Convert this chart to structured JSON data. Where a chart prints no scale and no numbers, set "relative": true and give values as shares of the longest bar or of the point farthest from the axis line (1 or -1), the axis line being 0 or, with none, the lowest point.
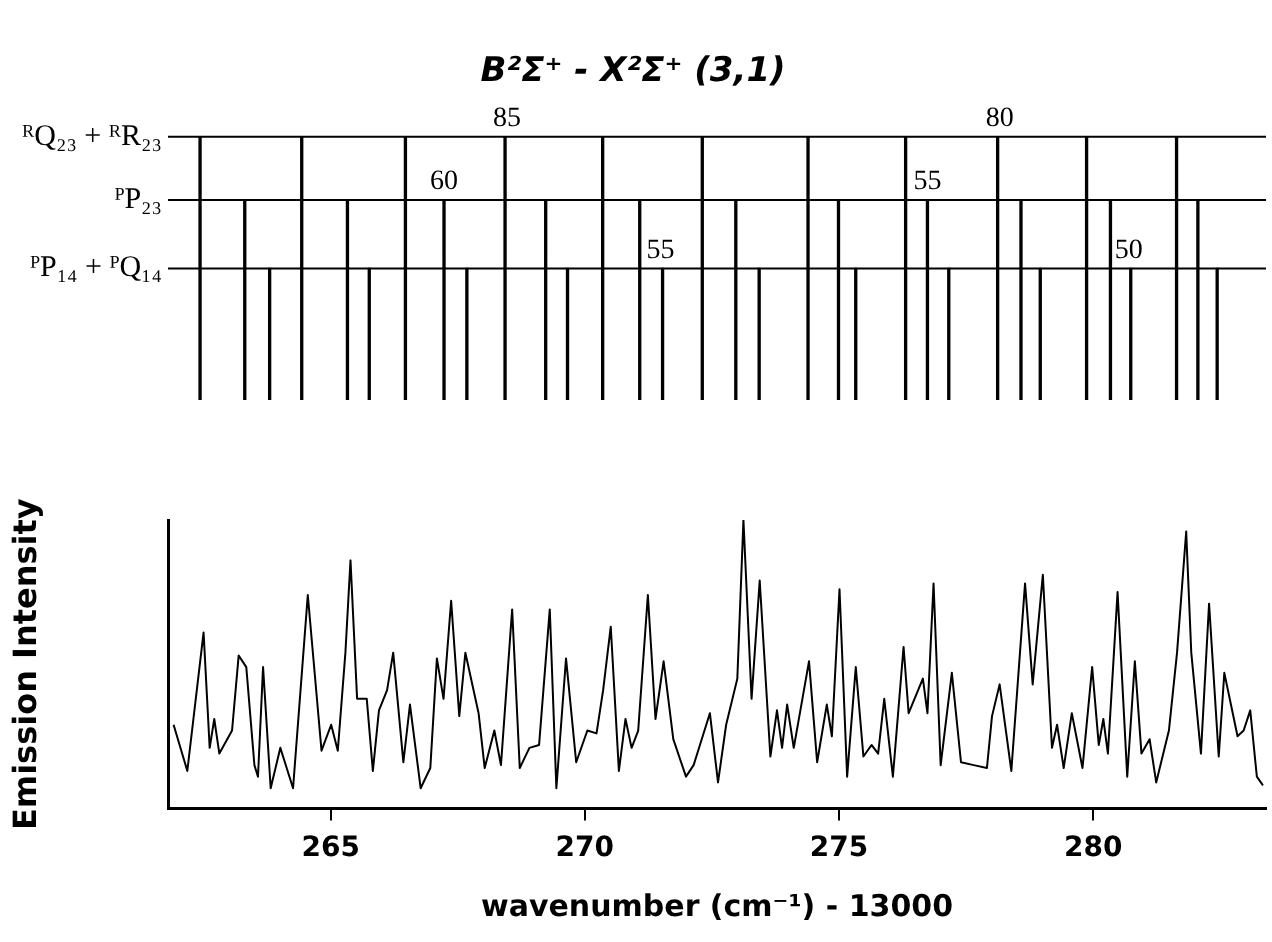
{
  "chart_data": [
    {
      "type": "bar",
      "title": "B²Σ⁺ - X²Σ⁺ (3,1)",
      "relative": true,
      "tick_labels": false,
      "legend": false,
      "xlim": [
        261.8,
        283.4
      ],
      "series": [
        {
          "color": "#000000",
          "x": [
            262.47,
            264.47,
            266.51,
            268.47,
            270.39,
            272.35,
            274.43,
            276.35,
            278.16,
            279.91,
            281.68
          ],
          "values": [
            1,
            1,
            1,
            1,
            1,
            1,
            1,
            1,
            1,
            1,
            1
          ]
        },
        {
          "color": "#000000",
          "x": [
            263.31,
            265.33,
            267.23,
            269.23,
            271.08,
            272.97,
            274.99,
            276.74,
            278.58,
            280.34,
            282.06
          ],
          "values": [
            0.76,
            0.76,
            0.76,
            0.76,
            0.76,
            0.76,
            0.76,
            0.76,
            0.76,
            0.76,
            0.76
          ]
        },
        {
          "color": "#000000",
          "x": [
            263.76,
            265.72,
            267.64,
            269.62,
            271.49,
            273.39,
            275.29,
            277.12,
            278.92,
            280.7,
            282.4
          ],
          "values": [
            0.5,
            0.5,
            0.5,
            0.5,
            0.5,
            0.5,
            0.5,
            0.5,
            0.5,
            0.5,
            0.5
          ]
        }
      ],
      "ref_lines": [
        {
          "axis": "y",
          "value": 1,
          "label": "ᴿQ₂₃ + ᴿR₂₃",
          "color": "#000000"
        },
        {
          "axis": "y",
          "value": 0.76,
          "label": "ᴾP₂₃",
          "color": "#000000"
        },
        {
          "axis": "y",
          "value": 0.5,
          "label": "ᴾP₁₄ + ᴾQ₁₄",
          "color": "#000000"
        }
      ],
      "annotations": [
        {
          "text": "85",
          "x": 268.47,
          "y": 1
        },
        {
          "text": "80",
          "x": 278.16,
          "y": 1
        },
        {
          "text": "60",
          "x": 267.23,
          "y": 0.76
        },
        {
          "text": "55",
          "x": 276.74,
          "y": 0.76
        },
        {
          "text": "55",
          "x": 271.49,
          "y": 0.5
        },
        {
          "text": "50",
          "x": 280.7,
          "y": 0.5
        }
      ]
    },
    {
      "type": "line",
      "relative": true,
      "tick_labels": "x",
      "legend": false,
      "grid": false,
      "xlabel": "wavenumber (cm⁻¹) - 13000",
      "ylabel": "Emission Intensity",
      "xlim": [
        261.8,
        283.4
      ],
      "xticks": [
        265,
        270,
        275,
        280
      ],
      "x": [
        261.91,
        262.18,
        262.5,
        262.62,
        262.71,
        262.81,
        263.06,
        263.19,
        263.34,
        263.5,
        263.57,
        263.67,
        263.82,
        264.01,
        264.26,
        264.55,
        264.82,
        265.01,
        265.14,
        265.29,
        265.39,
        265.52,
        265.71,
        265.83,
        265.95,
        266.11,
        266.23,
        266.43,
        266.56,
        266.77,
        266.96,
        267.09,
        267.22,
        267.37,
        267.53,
        267.65,
        267.91,
        268.03,
        268.22,
        268.35,
        268.57,
        268.72,
        268.91,
        269.1,
        269.31,
        269.44,
        269.63,
        269.83,
        270.05,
        270.23,
        270.36,
        270.51,
        270.67,
        270.8,
        270.92,
        271.05,
        271.24,
        271.39,
        271.55,
        271.74,
        271.99,
        272.14,
        272.46,
        272.62,
        272.78,
        273.0,
        273.12,
        273.28,
        273.44,
        273.65,
        273.78,
        273.88,
        273.98,
        274.11,
        274.41,
        274.57,
        274.76,
        274.86,
        275.01,
        275.16,
        275.33,
        275.48,
        275.64,
        275.77,
        275.89,
        276.06,
        276.27,
        276.37,
        276.65,
        276.74,
        276.86,
        277.0,
        277.22,
        277.4,
        277.65,
        277.91,
        278.01,
        278.16,
        278.39,
        278.66,
        278.81,
        279.01,
        279.19,
        279.29,
        279.42,
        279.58,
        279.79,
        279.98,
        280.11,
        280.2,
        280.29,
        280.48,
        280.67,
        280.82,
        280.95,
        281.11,
        281.24,
        281.49,
        281.65,
        281.83,
        281.93,
        282.12,
        282.28,
        282.47,
        282.58,
        282.71,
        282.84,
        282.96,
        283.09,
        283.22,
        283.34
      ],
      "series": [
        {
          "color": "#000000",
          "values": [
            0.29,
            0.13,
            0.61,
            0.21,
            0.31,
            0.19,
            0.27,
            0.53,
            0.49,
            0.15,
            0.11,
            0.49,
            0.07,
            0.21,
            0.07,
            0.74,
            0.2,
            0.29,
            0.2,
            0.54,
            0.86,
            0.38,
            0.38,
            0.13,
            0.34,
            0.41,
            0.54,
            0.16,
            0.36,
            0.07,
            0.14,
            0.52,
            0.38,
            0.72,
            0.32,
            0.54,
            0.33,
            0.14,
            0.27,
            0.15,
            0.69,
            0.14,
            0.21,
            0.22,
            0.69,
            0.07,
            0.52,
            0.16,
            0.27,
            0.26,
            0.41,
            0.63,
            0.13,
            0.31,
            0.21,
            0.27,
            0.74,
            0.31,
            0.51,
            0.24,
            0.11,
            0.15,
            0.33,
            0.09,
            0.29,
            0.45,
            1.0,
            0.38,
            0.79,
            0.18,
            0.34,
            0.21,
            0.36,
            0.21,
            0.51,
            0.16,
            0.36,
            0.25,
            0.76,
            0.11,
            0.49,
            0.18,
            0.22,
            0.19,
            0.38,
            0.11,
            0.56,
            0.33,
            0.45,
            0.33,
            0.78,
            0.15,
            0.47,
            0.16,
            0.15,
            0.14,
            0.32,
            0.43,
            0.13,
            0.78,
            0.43,
            0.81,
            0.21,
            0.29,
            0.14,
            0.33,
            0.14,
            0.49,
            0.22,
            0.31,
            0.19,
            0.75,
            0.11,
            0.51,
            0.19,
            0.24,
            0.09,
            0.27,
            0.54,
            0.96,
            0.54,
            0.19,
            0.71,
            0.18,
            0.47,
            0.36,
            0.25,
            0.27,
            0.34,
            0.11,
            0.08
          ]
        }
      ]
    }
  ]
}
